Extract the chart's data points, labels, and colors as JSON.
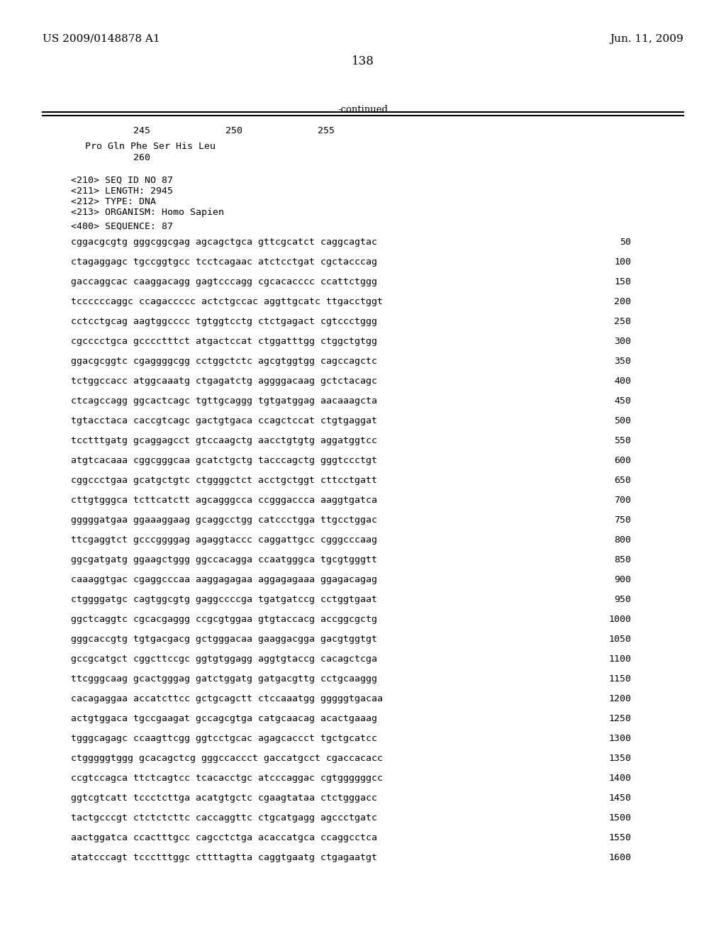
{
  "left_header": "US 2009/0148878 A1",
  "right_header": "Jun. 11, 2009",
  "page_number": "138",
  "continued_label": "-continued",
  "ruler_numbers": [
    "245",
    "250",
    "255"
  ],
  "protein_line1": "Pro Gln Phe Ser His Leu",
  "protein_line2": "260",
  "seq_info": [
    "<210> SEQ ID NO 87",
    "<211> LENGTH: 2945",
    "<212> TYPE: DNA",
    "<213> ORGANISM: Homo Sapien"
  ],
  "seq_header": "<400> SEQUENCE: 87",
  "sequence_lines": [
    [
      "cggacgcgtg gggcggcgag agcagctgca gttcgcatct caggcagtac",
      "50"
    ],
    [
      "ctagaggagc tgccggtgcc tcctcagaac atctcctgat cgctacccag",
      "100"
    ],
    [
      "gaccaggcac caaggacagg gagtcccagg cgcacacccc ccattctggg",
      "150"
    ],
    [
      "tccccccaggc ccagaccccc actctgccac aggttgcatc ttgacctggt",
      "200"
    ],
    [
      "cctcctgcag aagtggcccc tgtggtcctg ctctgagact cgtccctggg",
      "250"
    ],
    [
      "cgcccctgca gcccctttct atgactccat ctggatttgg ctggctgtgg",
      "300"
    ],
    [
      "ggacgcggtc cgaggggcgg cctggctctc agcgtggtgg cagccagctc",
      "350"
    ],
    [
      "tctggccacc atggcaaatg ctgagatctg aggggacaag gctctacagc",
      "400"
    ],
    [
      "ctcagccagg ggcactcagc tgttgcaggg tgtgatggag aacaaagcta",
      "450"
    ],
    [
      "tgtacctaca caccgtcagc gactgtgaca ccagctccat ctgtgaggat",
      "500"
    ],
    [
      "tcctttgatg gcaggagcct gtccaagctg aacctgtgtg aggatggtcc",
      "550"
    ],
    [
      "atgtcacaaa cggcgggcaa gcatctgctg tacccagctg gggtccctgt",
      "600"
    ],
    [
      "cggccctgaa gcatgctgtc ctggggctct acctgctggt cttcctgatt",
      "650"
    ],
    [
      "cttgtgggca tcttcatctt agcagggcca ccgggaccca aaggtgatca",
      "700"
    ],
    [
      "gggggatgaa ggaaaggaag gcaggcctgg catccctgga ttgcctggac",
      "750"
    ],
    [
      "ttcgaggtct gcccggggag agaggtaccc caggattgcc cgggcccaag",
      "800"
    ],
    [
      "ggcgatgatg ggaagctggg ggccacagga ccaatgggca tgcgtgggtt",
      "850"
    ],
    [
      "caaaggtgac cgaggcccaa aaggagagaa aggagagaaa ggagacagag",
      "900"
    ],
    [
      "ctggggatgc cagtggcgtg gaggccccga tgatgatccg cctggtgaat",
      "950"
    ],
    [
      "ggctcaggtc cgcacgaggg ccgcgtggaa gtgtaccacg accggcgctg",
      "1000"
    ],
    [
      "gggcaccgtg tgtgacgacg gctgggacaa gaaggacgga gacgtggtgt",
      "1050"
    ],
    [
      "gccgcatgct cggcttccgc ggtgtggagg aggtgtaccg cacagctcga",
      "1100"
    ],
    [
      "ttcgggcaag gcactgggag gatctggatg gatgacgttg cctgcaaggg",
      "1150"
    ],
    [
      "cacagaggaa accatcttcc gctgcagctt ctccaaatgg gggggtgacaa",
      "1200"
    ],
    [
      "actgtggaca tgccgaagat gccagcgtga catgcaacag acactgaaag",
      "1250"
    ],
    [
      "tgggcagagc ccaagttcgg ggtcctgcac agagcaccct tgctgcatcc",
      "1300"
    ],
    [
      "ctgggggtggg gcacagctcg gggccaccct gaccatgcct cgaccacacc",
      "1350"
    ],
    [
      "ccgtccagca ttctcagtcc tcacacctgc atcccaggac cgtggggggcc",
      "1400"
    ],
    [
      "ggtcgtcatt tccctcttga acatgtgctc cgaagtataa ctctgggacc",
      "1450"
    ],
    [
      "tactgcccgt ctctctcttc caccaggttc ctgcatgagg agccctgatc",
      "1500"
    ],
    [
      "aactggatca ccactttgcc cagcctctga acaccatgca ccaggcctca",
      "1550"
    ],
    [
      "atatcccagt tccctttggc cttttagtta caggtgaatg ctgagaatgt",
      "1600"
    ]
  ],
  "background_color": "#ffffff",
  "text_color": "#000000",
  "font_size_header": 11,
  "font_size_body": 9.5,
  "font_size_page": 12
}
